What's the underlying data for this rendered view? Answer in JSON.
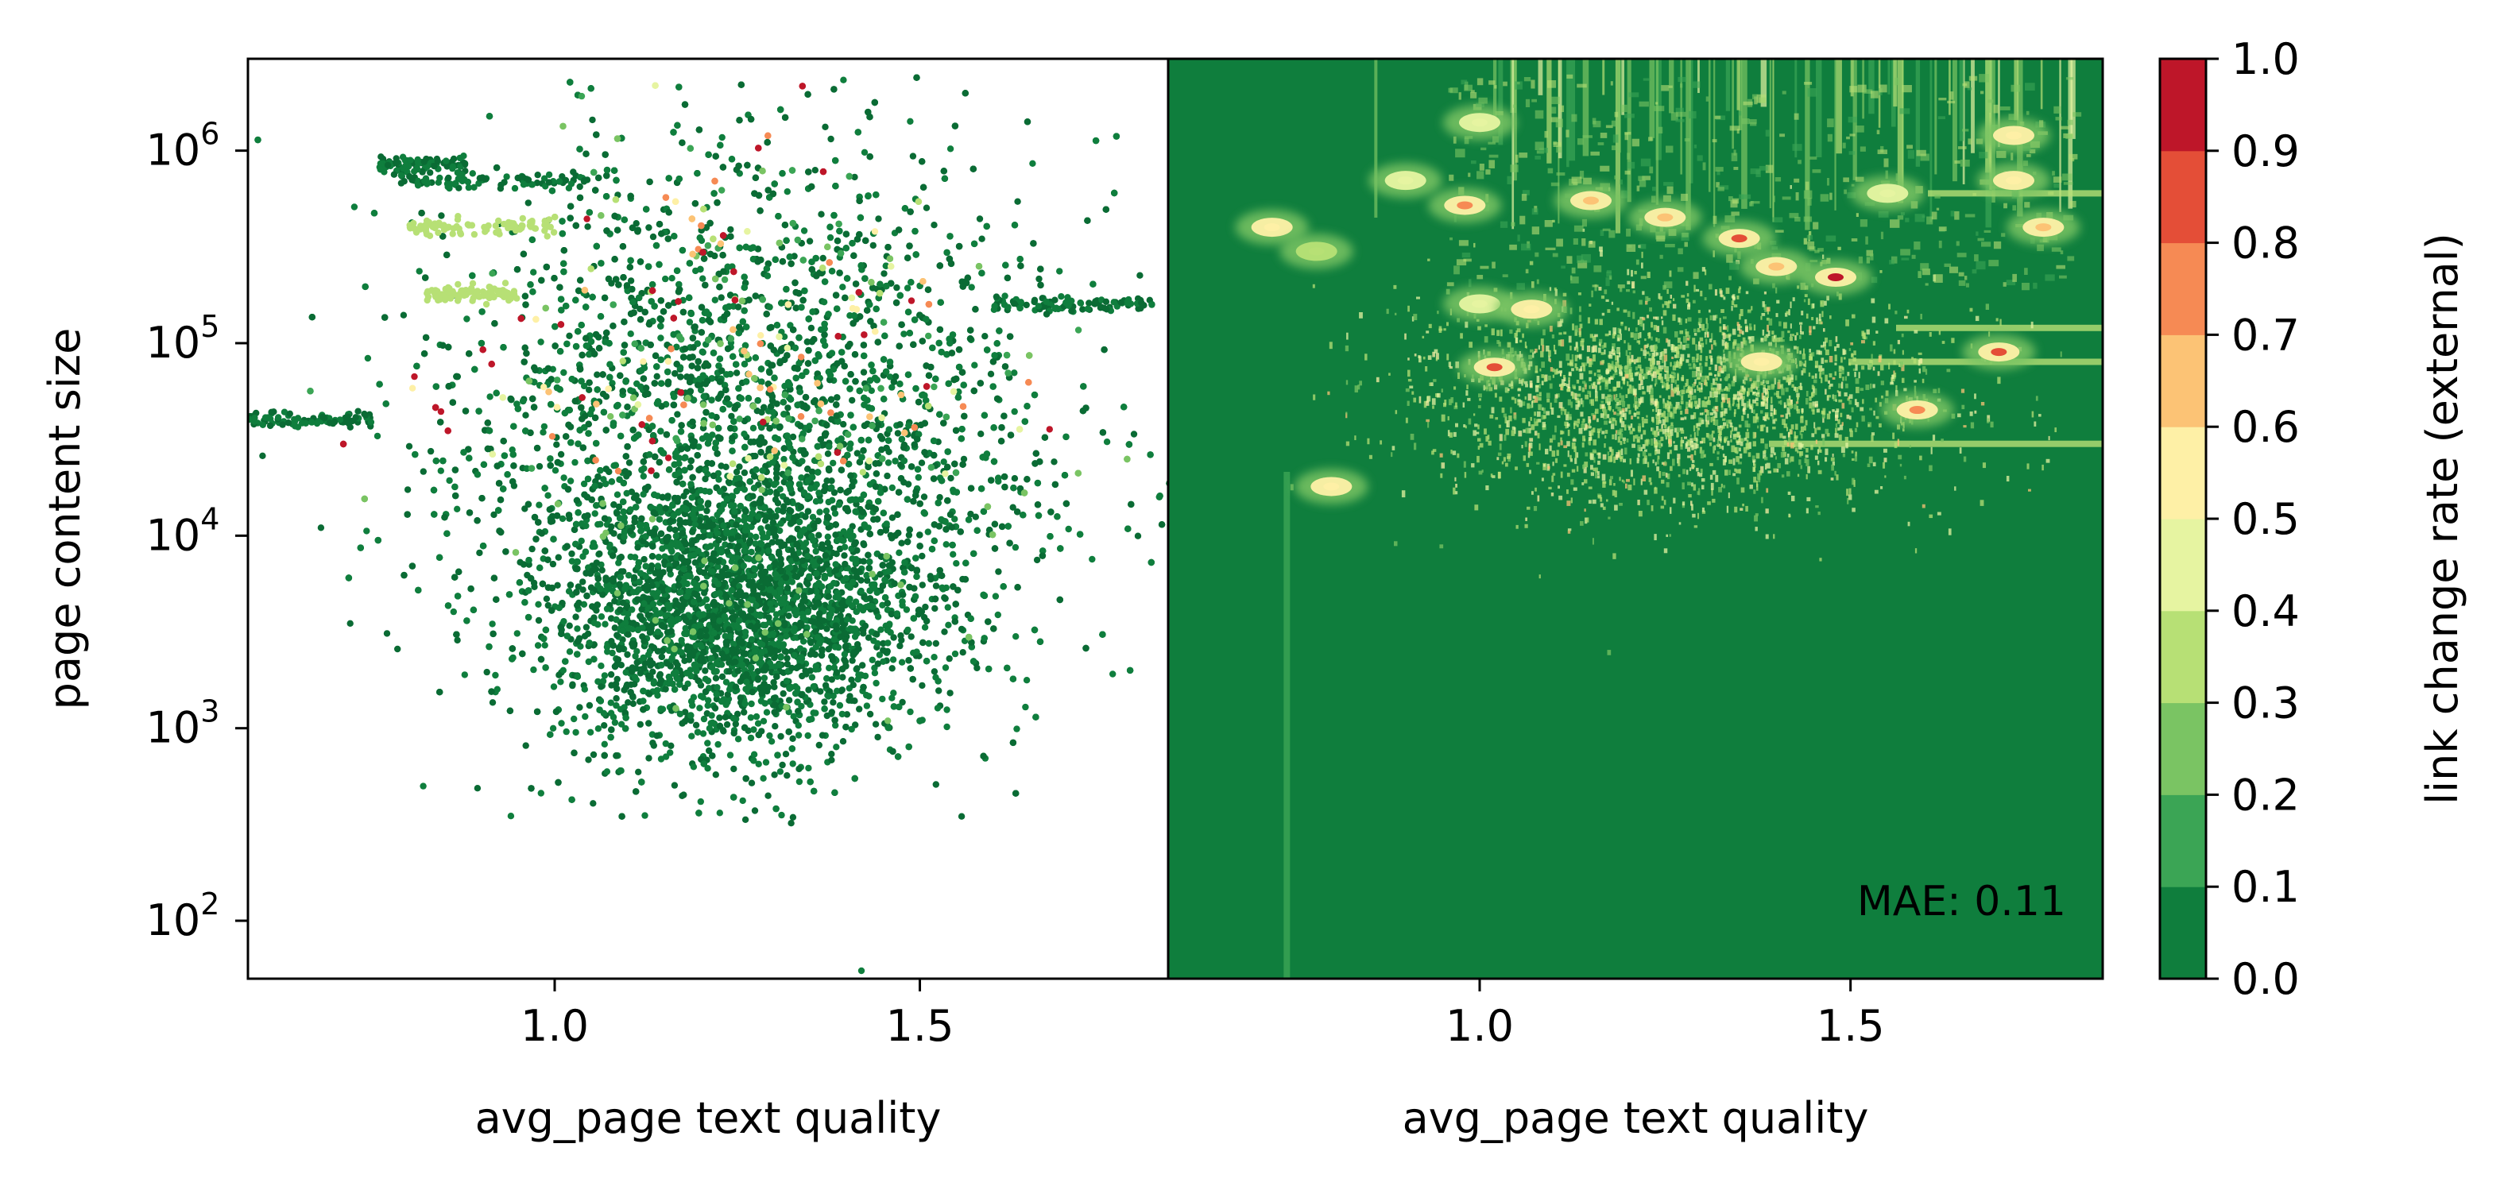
{
  "chart_data": [
    {
      "type": "scatter",
      "xlabel": "avg_page text quality",
      "ylabel": "page content size",
      "xticks": [
        "1.0",
        "1.5"
      ],
      "xtick_values": [
        1.0,
        1.5
      ],
      "xlim": [
        0.58,
        1.84
      ],
      "yscale": "log",
      "yticks": [
        {
          "base": "10",
          "exp": "2",
          "value": 100
        },
        {
          "base": "10",
          "exp": "3",
          "value": 1000
        },
        {
          "base": "10",
          "exp": "4",
          "value": 10000
        },
        {
          "base": "10",
          "exp": "5",
          "value": 100000
        },
        {
          "base": "10",
          "exp": "6",
          "value": 1000000
        }
      ],
      "ylim": [
        50,
        3000000
      ],
      "grid": false,
      "point_color_variable": "link change rate (external)",
      "dense_cluster_center": {
        "x": 1.27,
        "y": 30000
      },
      "dense_cluster_spread": {
        "x_sd": 0.2,
        "log10_y_sd": 0.75
      },
      "horizontal_streaks": [
        {
          "x_start": 0.76,
          "x_end": 0.88,
          "y": 850000,
          "value": 0.0
        },
        {
          "x_start": 0.78,
          "x_end": 1.05,
          "y": 700000,
          "value": 0.0
        },
        {
          "x_start": 0.8,
          "x_end": 1.0,
          "y": 400000,
          "value": 0.3
        },
        {
          "x_start": 0.58,
          "x_end": 0.75,
          "y": 40000,
          "value": 0.0
        },
        {
          "x_start": 1.6,
          "x_end": 1.82,
          "y": 160000,
          "value": 0.0
        },
        {
          "x_start": 0.82,
          "x_end": 0.95,
          "y": 180000,
          "value": 0.35
        }
      ],
      "outlier_points": [
        {
          "x": 1.42,
          "y": 55,
          "value": 0.0
        },
        {
          "x": 0.82,
          "y": 500,
          "value": 0.0
        },
        {
          "x": 0.94,
          "y": 350,
          "value": 0.0
        },
        {
          "x": 0.72,
          "y": 3500,
          "value": 0.0
        },
        {
          "x": 0.68,
          "y": 11000,
          "value": 0.0
        },
        {
          "x": 0.6,
          "y": 26000,
          "value": 0.0
        }
      ]
    },
    {
      "type": "heatmap",
      "xlabel": "avg_page text quality",
      "xticks": [
        "1.0",
        "1.5"
      ],
      "xtick_values": [
        1.0,
        1.5
      ],
      "xlim": [
        0.58,
        1.84
      ],
      "yscale": "log",
      "ylim": [
        50,
        3000000
      ],
      "annotation": "MAE: 0.11",
      "background_value": 0.05,
      "hotspots": [
        {
          "x": 0.72,
          "y": 400000,
          "value": 0.55
        },
        {
          "x": 0.78,
          "y": 300000,
          "value": 0.3
        },
        {
          "x": 0.9,
          "y": 700000,
          "value": 0.4
        },
        {
          "x": 0.98,
          "y": 520000,
          "value": 0.7
        },
        {
          "x": 1.0,
          "y": 160000,
          "value": 0.45
        },
        {
          "x": 1.15,
          "y": 550000,
          "value": 0.6
        },
        {
          "x": 1.25,
          "y": 450000,
          "value": 0.6
        },
        {
          "x": 1.35,
          "y": 350000,
          "value": 0.8
        },
        {
          "x": 1.4,
          "y": 250000,
          "value": 0.6
        },
        {
          "x": 1.48,
          "y": 220000,
          "value": 0.9
        },
        {
          "x": 1.38,
          "y": 80000,
          "value": 0.5
        },
        {
          "x": 1.07,
          "y": 150000,
          "value": 0.5
        },
        {
          "x": 1.55,
          "y": 600000,
          "value": 0.4
        },
        {
          "x": 1.72,
          "y": 700000,
          "value": 0.5
        },
        {
          "x": 1.76,
          "y": 400000,
          "value": 0.6
        },
        {
          "x": 1.7,
          "y": 90000,
          "value": 0.8
        },
        {
          "x": 1.59,
          "y": 45000,
          "value": 0.75
        },
        {
          "x": 1.02,
          "y": 75000,
          "value": 0.85
        },
        {
          "x": 0.8,
          "y": 18000,
          "value": 0.5
        },
        {
          "x": 1.0,
          "y": 1400000,
          "value": 0.4
        },
        {
          "x": 1.72,
          "y": 1200000,
          "value": 0.5
        }
      ]
    },
    {
      "type": "colorbar",
      "label": "link change rate (external)",
      "ticks": [
        "0.0",
        "0.1",
        "0.2",
        "0.3",
        "0.4",
        "0.5",
        "0.6",
        "0.7",
        "0.8",
        "0.9",
        "1.0"
      ],
      "tick_values": [
        0.0,
        0.1,
        0.2,
        0.3,
        0.4,
        0.5,
        0.6,
        0.7,
        0.8,
        0.9,
        1.0
      ],
      "range": [
        0.0,
        1.0
      ],
      "colors": [
        "#0f7e3d",
        "#3ba555",
        "#7ac463",
        "#b7e075",
        "#e6f4a1",
        "#fef0a6",
        "#fcc375",
        "#f68a54",
        "#e44e37",
        "#be1629"
      ]
    }
  ]
}
